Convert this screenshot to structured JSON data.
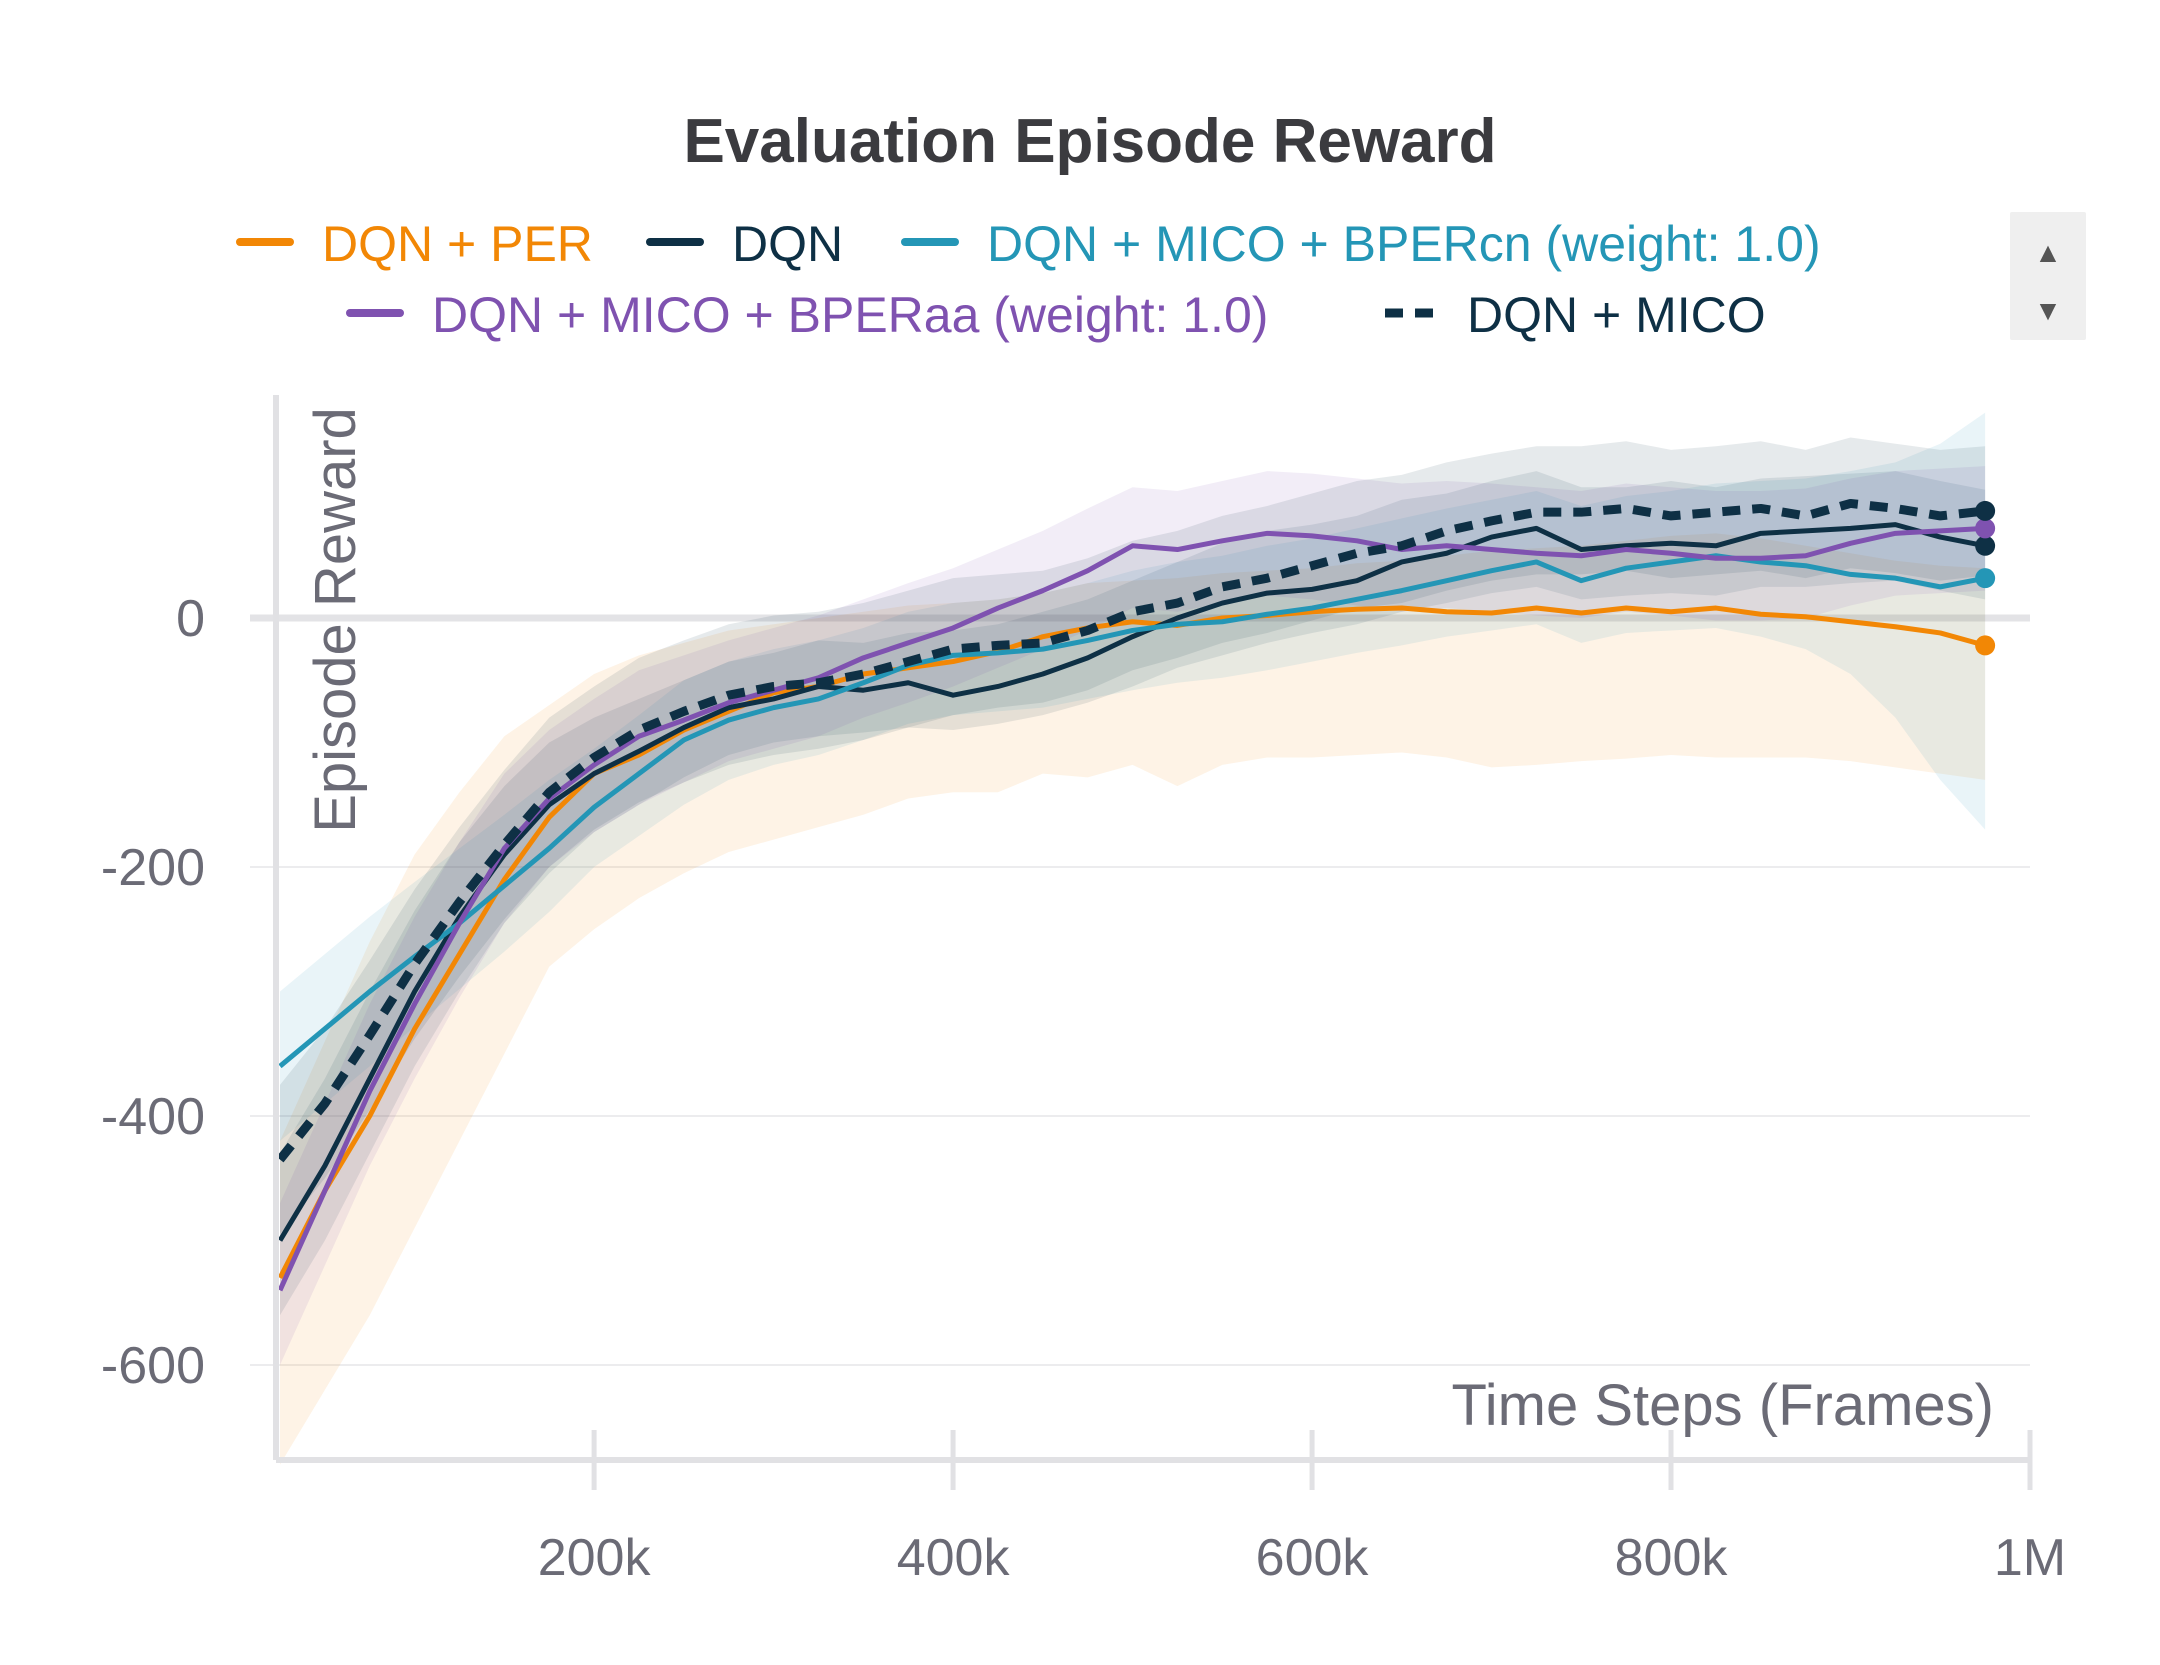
{
  "chart_data": {
    "type": "line",
    "title": "Evaluation Episode Reward",
    "xlabel": "Time Steps (Frames)",
    "ylabel": "Episode Reward",
    "xlim": [
      25000,
      1000000
    ],
    "ylim": [
      -700,
      180
    ],
    "x_ticks": [
      200000,
      400000,
      600000,
      800000,
      1000000
    ],
    "x_tick_labels": [
      "200k",
      "400k",
      "600k",
      "800k",
      "1M"
    ],
    "y_ticks": [
      0,
      -200,
      -400,
      -600
    ],
    "y_tick_labels": [
      "0",
      "-200",
      "-400",
      "-600"
    ],
    "grid": true,
    "legend_position": "top",
    "legend_scroll": {
      "up": "▲",
      "down": "▼"
    },
    "x": [
      25000,
      50000,
      75000,
      100000,
      125000,
      150000,
      175000,
      200000,
      225000,
      250000,
      275000,
      300000,
      325000,
      350000,
      375000,
      400000,
      425000,
      450000,
      475000,
      500000,
      525000,
      550000,
      575000,
      600000,
      625000,
      650000,
      675000,
      700000,
      725000,
      750000,
      775000,
      800000,
      825000,
      850000,
      875000,
      900000,
      925000,
      950000,
      975000
    ],
    "series": [
      {
        "name": "DQN + PER",
        "color": "#f28705",
        "dash": "solid",
        "values": [
          -530,
          -460,
          -400,
          -330,
          -270,
          -210,
          -160,
          -125,
          -110,
          -90,
          -75,
          -60,
          -55,
          -45,
          -40,
          -35,
          -27,
          -15,
          -8,
          -3,
          -6,
          0,
          2,
          5,
          7,
          8,
          5,
          4,
          8,
          4,
          8,
          5,
          8,
          3,
          1,
          -3,
          -7,
          -12,
          -22
        ],
        "lower": [
          -680,
          -620,
          -560,
          -490,
          -420,
          -350,
          -280,
          -250,
          -225,
          -205,
          -188,
          -178,
          -168,
          -158,
          -145,
          -140,
          -140,
          -125,
          -128,
          -118,
          -135,
          -118,
          -112,
          -112,
          -110,
          -108,
          -112,
          -120,
          -118,
          -115,
          -113,
          -110,
          -112,
          -112,
          -112,
          -115,
          -120,
          -125,
          -130
        ],
        "upper": [
          -420,
          -340,
          -260,
          -190,
          -140,
          -95,
          -70,
          -45,
          -30,
          -20,
          -10,
          -5,
          0,
          5,
          10,
          12,
          15,
          20,
          28,
          30,
          32,
          36,
          38,
          40,
          44,
          46,
          50,
          54,
          56,
          58,
          62,
          66,
          68,
          64,
          58,
          52,
          46,
          42,
          40
        ]
      },
      {
        "name": "DQN",
        "color": "#0e3045",
        "dash": "solid",
        "values": [
          -500,
          -440,
          -370,
          -300,
          -240,
          -190,
          -150,
          -125,
          -107,
          -88,
          -72,
          -65,
          -55,
          -58,
          -52,
          -62,
          -55,
          -45,
          -32,
          -15,
          0,
          12,
          20,
          23,
          30,
          45,
          52,
          65,
          72,
          55,
          58,
          60,
          58,
          68,
          70,
          72,
          75,
          65,
          58
        ],
        "lower": [
          -560,
          -500,
          -430,
          -360,
          -300,
          -245,
          -205,
          -172,
          -150,
          -128,
          -110,
          -100,
          -95,
          -92,
          -88,
          -90,
          -85,
          -78,
          -68,
          -55,
          -40,
          -30,
          -20,
          -12,
          -5,
          5,
          12,
          20,
          25,
          15,
          18,
          20,
          18,
          25,
          25,
          28,
          30,
          22,
          15
        ],
        "upper": [
          -430,
          -370,
          -300,
          -235,
          -180,
          -135,
          -100,
          -80,
          -65,
          -50,
          -35,
          -28,
          -18,
          -20,
          -12,
          -10,
          -5,
          5,
          15,
          30,
          45,
          60,
          70,
          75,
          82,
          95,
          100,
          110,
          118,
          105,
          105,
          110,
          105,
          112,
          114,
          116,
          118,
          110,
          103
        ]
      },
      {
        "name": "DQN + MICO + BPERcn (weight: 1.0)",
        "color": "#2496b6",
        "dash": "solid",
        "values": [
          -360,
          -330,
          -300,
          -272,
          -245,
          -215,
          -185,
          -152,
          -125,
          -98,
          -82,
          -72,
          -65,
          -52,
          -38,
          -30,
          -28,
          -25,
          -18,
          -10,
          -5,
          -3,
          3,
          8,
          15,
          22,
          30,
          38,
          45,
          30,
          40,
          45,
          50,
          45,
          42,
          35,
          32,
          25,
          32
        ],
        "lower": [
          -420,
          -390,
          -360,
          -328,
          -298,
          -268,
          -236,
          -200,
          -175,
          -150,
          -130,
          -118,
          -110,
          -98,
          -85,
          -78,
          -75,
          -72,
          -65,
          -58,
          -52,
          -48,
          -42,
          -35,
          -28,
          -22,
          -15,
          -10,
          -5,
          -20,
          -12,
          -10,
          -8,
          -15,
          -25,
          -45,
          -80,
          -130,
          -170
        ],
        "upper": [
          -300,
          -270,
          -240,
          -212,
          -185,
          -158,
          -130,
          -105,
          -78,
          -50,
          -35,
          -25,
          -18,
          -8,
          5,
          12,
          15,
          20,
          28,
          38,
          45,
          50,
          58,
          64,
          72,
          80,
          88,
          95,
          102,
          90,
          98,
          102,
          108,
          110,
          112,
          118,
          125,
          140,
          165
        ]
      },
      {
        "name": "DQN + MICO + BPERaa (weight: 1.0)",
        "color": "#7f52b0",
        "dash": "solid",
        "values": [
          -540,
          -460,
          -380,
          -310,
          -245,
          -185,
          -145,
          -118,
          -95,
          -82,
          -68,
          -58,
          -48,
          -32,
          -20,
          -8,
          8,
          22,
          38,
          58,
          55,
          62,
          68,
          66,
          62,
          55,
          58,
          55,
          52,
          50,
          55,
          52,
          48,
          48,
          50,
          60,
          68,
          70,
          72
        ],
        "lower": [
          -600,
          -520,
          -440,
          -370,
          -305,
          -245,
          -200,
          -172,
          -150,
          -132,
          -115,
          -105,
          -95,
          -80,
          -68,
          -55,
          -40,
          -25,
          -10,
          8,
          5,
          12,
          18,
          15,
          10,
          5,
          8,
          5,
          2,
          0,
          5,
          2,
          -2,
          -2,
          0,
          10,
          18,
          20,
          22
        ],
        "upper": [
          -470,
          -390,
          -310,
          -240,
          -180,
          -125,
          -90,
          -65,
          -42,
          -30,
          -18,
          -8,
          2,
          15,
          28,
          40,
          55,
          70,
          88,
          105,
          102,
          110,
          118,
          116,
          112,
          108,
          110,
          108,
          105,
          102,
          108,
          105,
          102,
          102,
          104,
          112,
          118,
          120,
          122
        ]
      },
      {
        "name": "DQN + MICO",
        "color": "#0e3045",
        "dash": "dashed",
        "values": [
          -435,
          -390,
          -335,
          -278,
          -228,
          -182,
          -140,
          -112,
          -90,
          -75,
          -62,
          -55,
          -52,
          -45,
          -35,
          -25,
          -22,
          -20,
          -10,
          5,
          12,
          25,
          32,
          42,
          52,
          58,
          70,
          78,
          85,
          85,
          88,
          82,
          85,
          88,
          82,
          92,
          88,
          82,
          86
        ],
        "lower": [
          -495,
          -450,
          -395,
          -338,
          -288,
          -242,
          -200,
          -170,
          -148,
          -132,
          -118,
          -110,
          -105,
          -98,
          -88,
          -78,
          -72,
          -68,
          -58,
          -42,
          -32,
          -20,
          -12,
          -2,
          8,
          12,
          22,
          30,
          35,
          35,
          38,
          32,
          35,
          38,
          32,
          40,
          36,
          30,
          34
        ],
        "upper": [
          -375,
          -330,
          -275,
          -218,
          -168,
          -122,
          -80,
          -55,
          -32,
          -18,
          -5,
          2,
          5,
          12,
          22,
          32,
          35,
          38,
          48,
          62,
          70,
          82,
          90,
          100,
          110,
          115,
          125,
          132,
          138,
          138,
          142,
          135,
          138,
          142,
          135,
          145,
          140,
          135,
          138
        ]
      }
    ]
  }
}
